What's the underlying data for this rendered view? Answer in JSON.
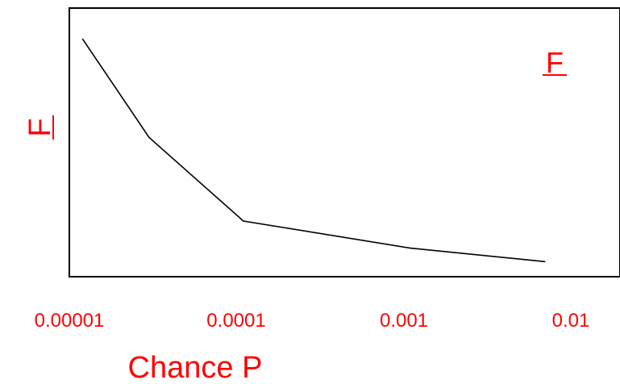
{
  "chart_data": {
    "type": "line",
    "x_scale": "log",
    "xlim": [
      1e-05,
      0.01
    ],
    "xlabel": "Chance P",
    "ylabel": "F",
    "y_ticks_shown": false,
    "x_ticks": [
      {
        "value": 1e-05,
        "label": "0.00001"
      },
      {
        "value": 0.0001,
        "label": "0.0001"
      },
      {
        "value": 0.001,
        "label": "0.001"
      },
      {
        "value": 0.01,
        "label": "0.01"
      }
    ],
    "series": [
      {
        "values": [
          {
            "x": 1.2e-05,
            "y": 0.94
          },
          {
            "x": 3e-05,
            "y": 0.54
          },
          {
            "x": 0.00011,
            "y": 0.2
          },
          {
            "x": 0.0011,
            "y": 0.09
          },
          {
            "x": 0.007,
            "y": 0.035
          }
        ]
      }
    ],
    "annotations": [
      {
        "text": "F",
        "underlined": true,
        "position": "top-right"
      }
    ],
    "colors": {
      "text": "#ff0000",
      "line": "#000000",
      "frame": "#000000"
    }
  }
}
